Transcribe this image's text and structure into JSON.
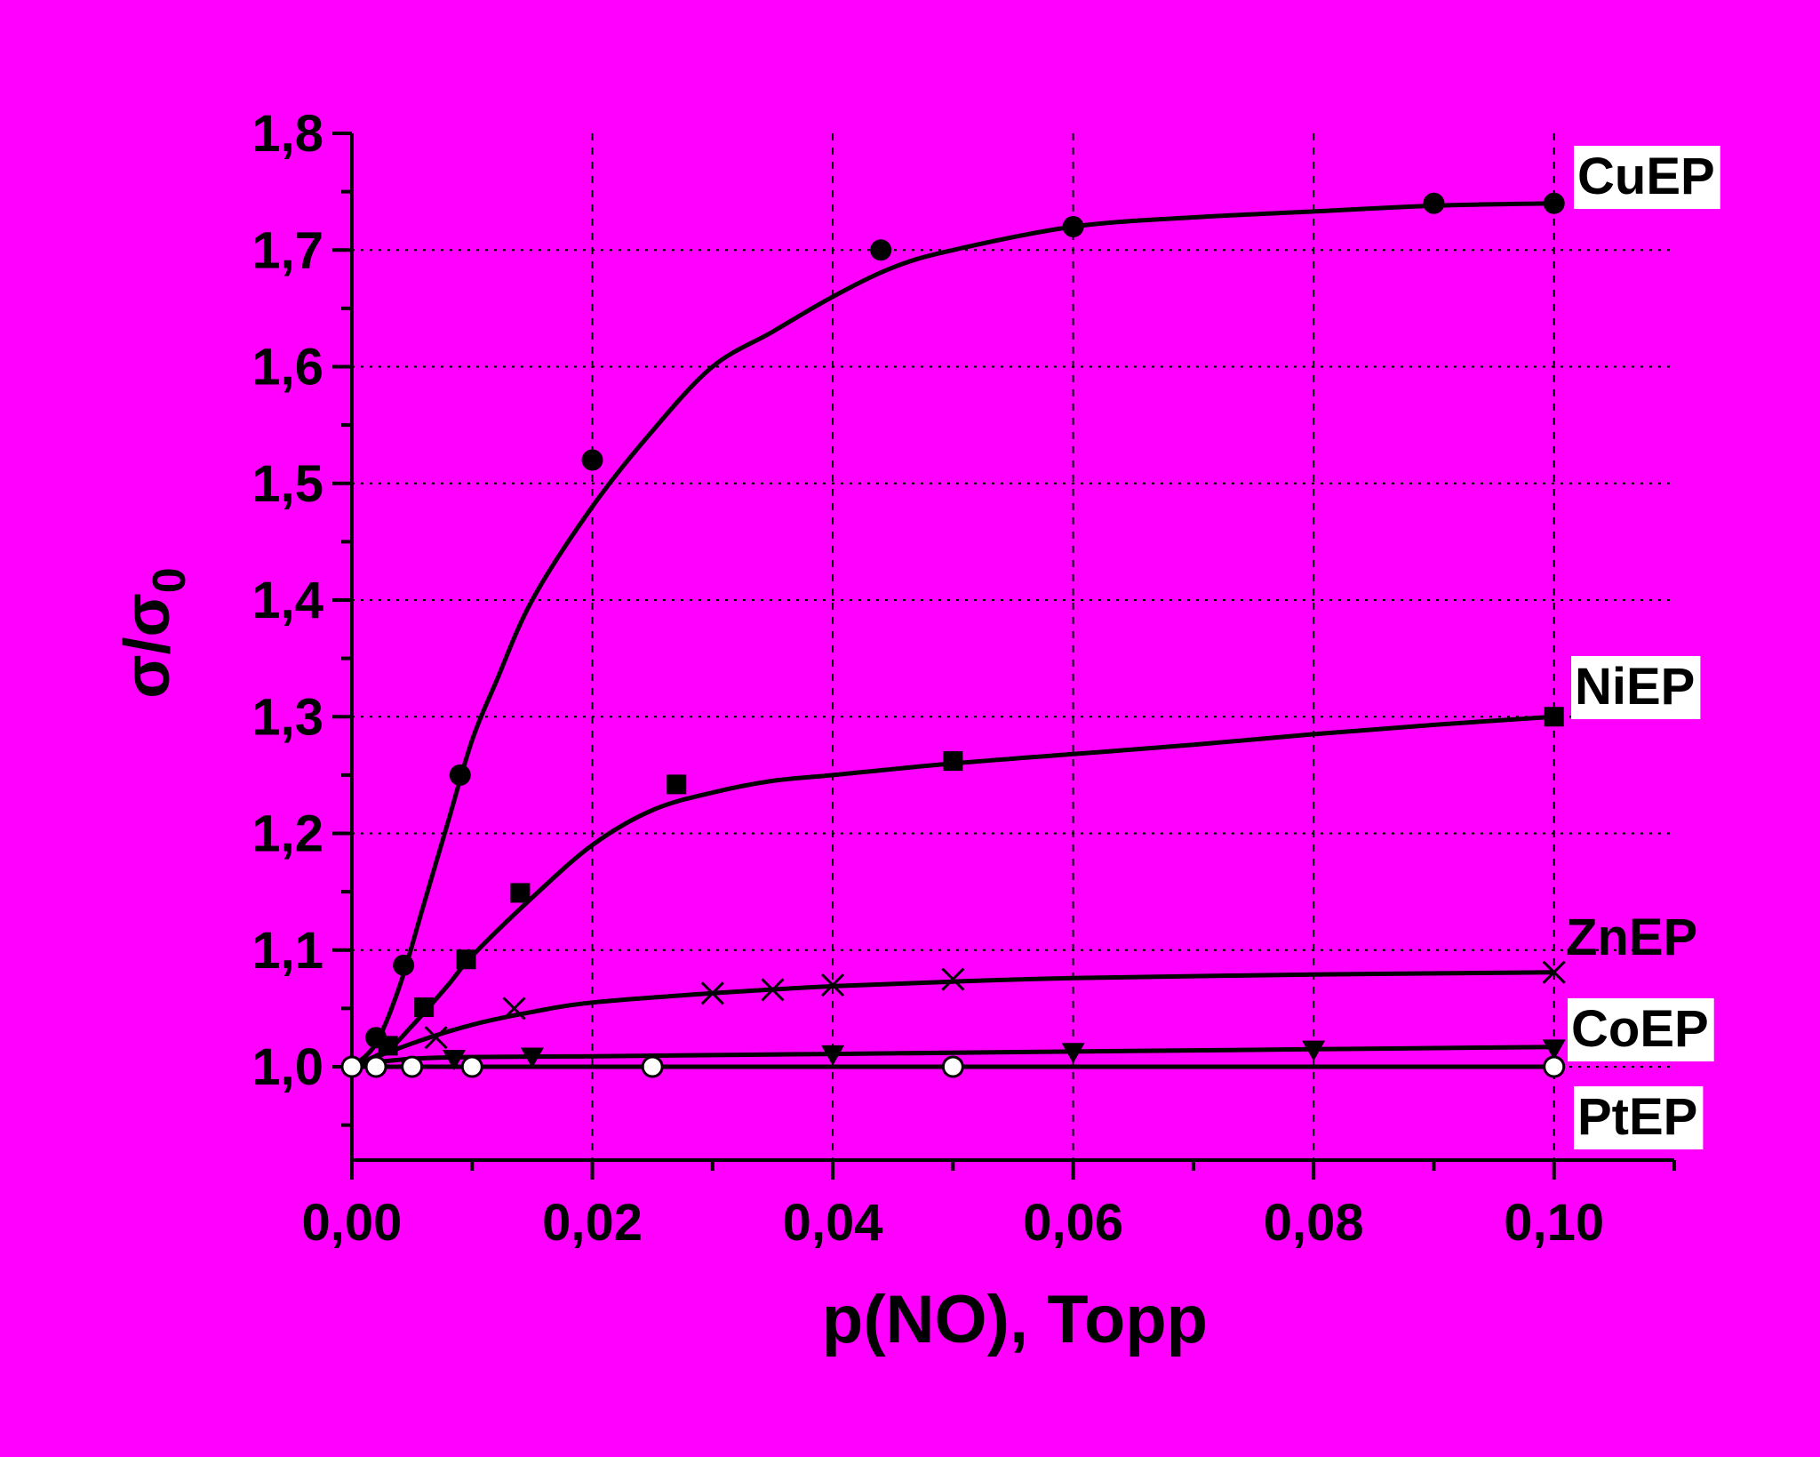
{
  "chart_data": {
    "type": "scatter",
    "xlabel": "p(NO), Торр",
    "ylabel_main": "σ/σ",
    "ylabel_sub": "0",
    "xlim": [
      0,
      0.11
    ],
    "ylim": [
      0.92,
      1.8
    ],
    "xticks": [
      {
        "value": 0.0,
        "label": "0,00"
      },
      {
        "value": 0.02,
        "label": "0,02"
      },
      {
        "value": 0.04,
        "label": "0,04"
      },
      {
        "value": 0.06,
        "label": "0,06"
      },
      {
        "value": 0.08,
        "label": "0,08"
      },
      {
        "value": 0.1,
        "label": "0,10"
      }
    ],
    "yticks": [
      {
        "value": 1.0,
        "label": "1,0"
      },
      {
        "value": 1.1,
        "label": "1,1"
      },
      {
        "value": 1.2,
        "label": "1,2"
      },
      {
        "value": 1.3,
        "label": "1,3"
      },
      {
        "value": 1.4,
        "label": "1,4"
      },
      {
        "value": 1.5,
        "label": "1,5"
      },
      {
        "value": 1.6,
        "label": "1,6"
      },
      {
        "value": 1.7,
        "label": "1,7"
      },
      {
        "value": 1.8,
        "label": "1,8"
      }
    ],
    "grid": {
      "vertical": "dashed",
      "horizontal": "dotted"
    },
    "series": [
      {
        "name": "CuEP",
        "marker": "filled-circle",
        "points": [
          [
            0.002,
            1.025
          ],
          [
            0.0043,
            1.087
          ],
          [
            0.009,
            1.25
          ],
          [
            0.02,
            1.52
          ],
          [
            0.044,
            1.7
          ],
          [
            0.06,
            1.72
          ],
          [
            0.09,
            1.74
          ],
          [
            0.1,
            1.74
          ]
        ],
        "fit": [
          [
            0.0,
            1.0
          ],
          [
            0.002,
            1.02
          ],
          [
            0.004,
            1.07
          ],
          [
            0.006,
            1.14
          ],
          [
            0.008,
            1.21
          ],
          [
            0.01,
            1.28
          ],
          [
            0.012,
            1.33
          ],
          [
            0.015,
            1.4
          ],
          [
            0.02,
            1.48
          ],
          [
            0.025,
            1.545
          ],
          [
            0.03,
            1.6
          ],
          [
            0.035,
            1.63
          ],
          [
            0.04,
            1.66
          ],
          [
            0.045,
            1.685
          ],
          [
            0.05,
            1.7
          ],
          [
            0.06,
            1.72
          ],
          [
            0.07,
            1.728
          ],
          [
            0.08,
            1.733
          ],
          [
            0.09,
            1.738
          ],
          [
            0.1,
            1.74
          ]
        ]
      },
      {
        "name": "NiEP",
        "marker": "filled-square",
        "points": [
          [
            0.003,
            1.018
          ],
          [
            0.006,
            1.051
          ],
          [
            0.0095,
            1.092
          ],
          [
            0.014,
            1.149
          ],
          [
            0.027,
            1.242
          ],
          [
            0.05,
            1.262
          ],
          [
            0.1,
            1.3
          ]
        ],
        "fit": [
          [
            0.0,
            1.0
          ],
          [
            0.003,
            1.015
          ],
          [
            0.005,
            1.035
          ],
          [
            0.008,
            1.07
          ],
          [
            0.01,
            1.095
          ],
          [
            0.015,
            1.145
          ],
          [
            0.02,
            1.19
          ],
          [
            0.025,
            1.22
          ],
          [
            0.03,
            1.235
          ],
          [
            0.035,
            1.245
          ],
          [
            0.04,
            1.25
          ],
          [
            0.05,
            1.26
          ],
          [
            0.06,
            1.268
          ],
          [
            0.07,
            1.276
          ],
          [
            0.08,
            1.285
          ],
          [
            0.09,
            1.293
          ],
          [
            0.1,
            1.3
          ]
        ]
      },
      {
        "name": "ZnEP",
        "marker": "cross",
        "points": [
          [
            0.007,
            1.025
          ],
          [
            0.0135,
            1.05
          ],
          [
            0.03,
            1.063
          ],
          [
            0.035,
            1.066
          ],
          [
            0.04,
            1.07
          ],
          [
            0.05,
            1.075
          ],
          [
            0.1,
            1.081
          ]
        ],
        "fit": [
          [
            0.0,
            1.0
          ],
          [
            0.005,
            1.02
          ],
          [
            0.01,
            1.036
          ],
          [
            0.015,
            1.047
          ],
          [
            0.02,
            1.055
          ],
          [
            0.03,
            1.063
          ],
          [
            0.04,
            1.069
          ],
          [
            0.05,
            1.073
          ],
          [
            0.06,
            1.076
          ],
          [
            0.08,
            1.079
          ],
          [
            0.1,
            1.081
          ]
        ]
      },
      {
        "name": "CoEP",
        "marker": "filled-triangle-down",
        "points": [
          [
            0.0085,
            1.006
          ],
          [
            0.015,
            1.008
          ],
          [
            0.04,
            1.01
          ],
          [
            0.06,
            1.012
          ],
          [
            0.08,
            1.014
          ],
          [
            0.1,
            1.015
          ]
        ],
        "fit": [
          [
            0.0,
            1.0
          ],
          [
            0.003,
            1.005
          ],
          [
            0.008,
            1.008
          ],
          [
            0.02,
            1.009
          ],
          [
            0.04,
            1.011
          ],
          [
            0.06,
            1.013
          ],
          [
            0.08,
            1.015
          ],
          [
            0.1,
            1.017
          ]
        ]
      },
      {
        "name": "PtEP",
        "marker": "open-circle",
        "points": [
          [
            0.0,
            1.0
          ],
          [
            0.002,
            1.0
          ],
          [
            0.005,
            1.0
          ],
          [
            0.01,
            1.0
          ],
          [
            0.025,
            1.0
          ],
          [
            0.05,
            1.0
          ],
          [
            0.1,
            1.0
          ]
        ],
        "fit": [
          [
            0.0,
            1.0
          ],
          [
            0.1,
            1.0
          ]
        ]
      }
    ]
  }
}
